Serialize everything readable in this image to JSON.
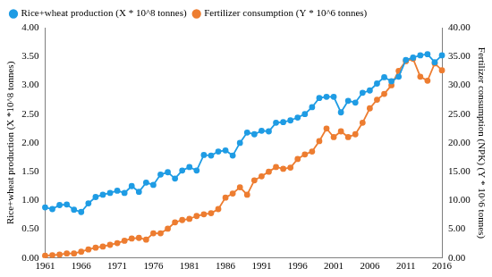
{
  "chart_data": {
    "type": "line",
    "categories": [
      "1961",
      null,
      null,
      null,
      null,
      "1966",
      null,
      null,
      null,
      null,
      "1971",
      null,
      null,
      null,
      null,
      "1976",
      null,
      null,
      null,
      null,
      "1981",
      null,
      null,
      null,
      null,
      "1986",
      null,
      null,
      null,
      null,
      "1991",
      null,
      null,
      null,
      null,
      "1996",
      null,
      null,
      null,
      null,
      "2001",
      null,
      null,
      null,
      null,
      "2006",
      null,
      null,
      null,
      null,
      "2011",
      null,
      null,
      null,
      null,
      "2016"
    ],
    "series": [
      {
        "name": "Rice+wheat production (X * 10^8 tonnes)",
        "color": "#1f9ce4",
        "marker": "circle",
        "line_style": "solid",
        "axis": "y",
        "values": [
          0.88,
          0.85,
          0.92,
          0.93,
          0.84,
          0.8,
          0.95,
          1.06,
          1.1,
          1.13,
          1.17,
          1.13,
          1.25,
          1.15,
          1.31,
          1.27,
          1.45,
          1.49,
          1.38,
          1.52,
          1.58,
          1.52,
          1.79,
          1.78,
          1.85,
          1.87,
          1.78,
          2.0,
          2.18,
          2.15,
          2.21,
          2.2,
          2.35,
          2.36,
          2.39,
          2.44,
          2.5,
          2.62,
          2.78,
          2.8,
          2.8,
          2.53,
          2.73,
          2.7,
          2.87,
          2.91,
          3.03,
          3.14,
          3.07,
          3.15,
          3.44,
          3.48,
          3.52,
          3.54,
          3.4,
          3.52
        ]
      },
      {
        "name": "Fertilizer consumption (Y * 10^6 tonnes)",
        "color": "#ed7d31",
        "marker": "circle",
        "line_style": "solid",
        "axis": "y2",
        "values": [
          0.4,
          0.5,
          0.6,
          0.8,
          0.8,
          1.1,
          1.5,
          1.8,
          2.0,
          2.3,
          2.6,
          3.0,
          3.4,
          3.5,
          3.2,
          4.3,
          4.3,
          5.1,
          6.2,
          6.6,
          6.8,
          7.3,
          7.6,
          7.8,
          8.5,
          10.5,
          11.2,
          12.3,
          11.0,
          13.5,
          14.2,
          15.0,
          15.8,
          15.5,
          15.7,
          17.2,
          18.0,
          18.5,
          20.3,
          22.5,
          21.0,
          22.0,
          21.0,
          21.5,
          23.5,
          26.0,
          27.5,
          28.5,
          30.0,
          32.5,
          34.2,
          34.6,
          31.5,
          30.8,
          33.8,
          32.6
        ]
      }
    ],
    "y_label": "Rice+wheat production (X *10^8 tonnes)",
    "y2_label": "Fertilizer consumption (NPK) (Y * 10^6 tonnes)",
    "ylim": [
      0,
      4
    ],
    "yticks": [
      {
        "value": 0,
        "label": "0.00"
      },
      {
        "value": 0.5,
        "label": "0.50"
      },
      {
        "value": 1,
        "label": "1.00"
      },
      {
        "value": 1.5,
        "label": "1.50"
      },
      {
        "value": 2,
        "label": "2.00"
      },
      {
        "value": 2.5,
        "label": "2.50"
      },
      {
        "value": 3,
        "label": "3.00"
      },
      {
        "value": 3.5,
        "label": "3.50"
      },
      {
        "value": 4,
        "label": "4.00"
      }
    ],
    "y2lim": [
      0,
      40
    ],
    "y2ticks": [
      {
        "value": 0,
        "label": "0.00"
      },
      {
        "value": 5,
        "label": "5.00"
      },
      {
        "value": 10,
        "label": "10.00"
      },
      {
        "value": 15,
        "label": "15.00"
      },
      {
        "value": 20,
        "label": "20.00"
      },
      {
        "value": 25,
        "label": "25.00"
      },
      {
        "value": 30,
        "label": "30.00"
      },
      {
        "value": 35,
        "label": "35.00"
      },
      {
        "value": 40,
        "label": "40.00"
      }
    ],
    "grid": false,
    "legend": "top"
  }
}
